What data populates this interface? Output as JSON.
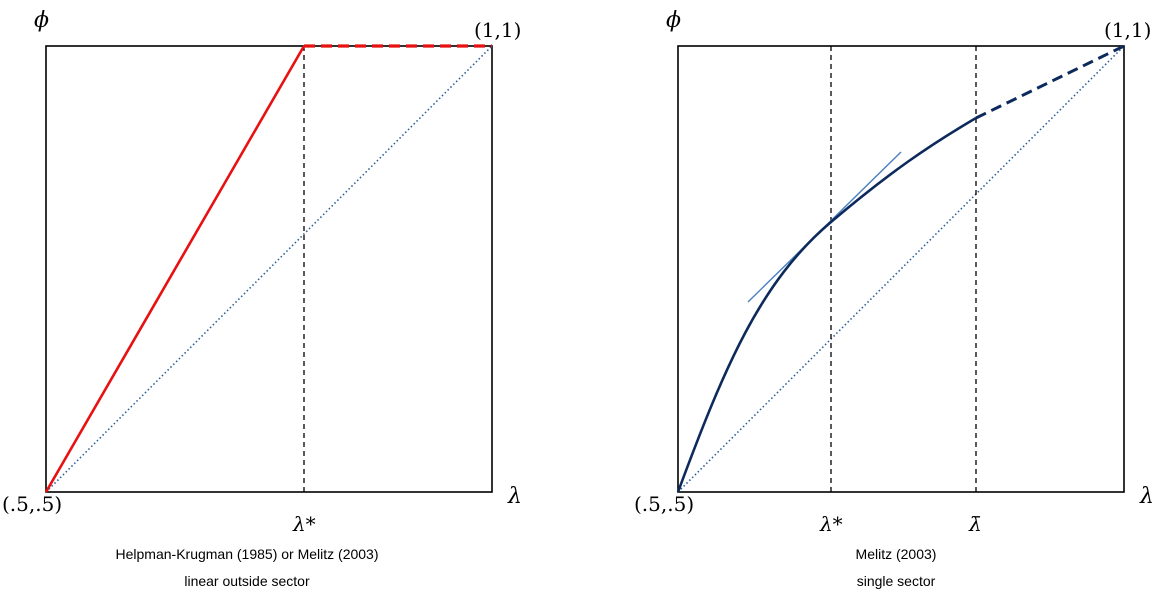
{
  "panels": [
    {
      "y_axis_label": "ϕ",
      "x_axis_label": "λ",
      "origin_label": "(.5,.5)",
      "corner_label": "(1,1)",
      "markers": [
        "λ*"
      ],
      "caption_line1": "Helpman-Krugman (1985) or Melitz (2003)",
      "caption_line2": "linear outside sector",
      "curve_color": "#e81010",
      "diagonal_color": "#2f5f9f"
    },
    {
      "y_axis_label": "ϕ",
      "x_axis_label": "λ",
      "origin_label": "(.5,.5)",
      "corner_label": "(1,1)",
      "markers": [
        "λ*",
        "λ̄"
      ],
      "caption_line1": "Melitz (2003)",
      "caption_line2": "single sector",
      "curve_color": "#0d2a5c",
      "diagonal_color": "#2f5f9f",
      "tangent_color": "#4a7fc1"
    }
  ]
}
